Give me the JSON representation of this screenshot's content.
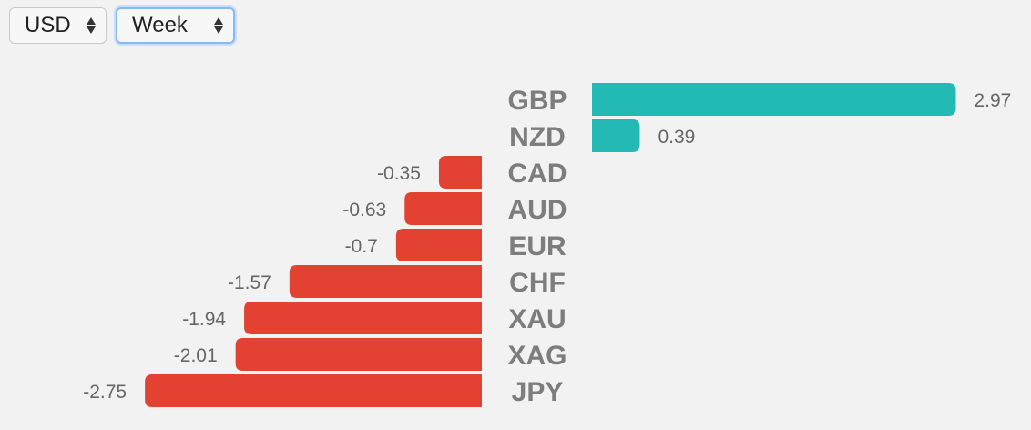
{
  "controls": {
    "currency_select": "USD",
    "period_select": "Week"
  },
  "colors": {
    "positive": "#23bab6",
    "negative": "#e34233"
  },
  "chart_data": {
    "type": "bar",
    "orientation": "horizontal",
    "categories": [
      "GBP",
      "NZD",
      "CAD",
      "AUD",
      "EUR",
      "CHF",
      "XAU",
      "XAG",
      "JPY"
    ],
    "values": [
      2.97,
      0.39,
      -0.35,
      -0.63,
      -0.7,
      -1.57,
      -1.94,
      -2.01,
      -2.75
    ],
    "value_labels": [
      "2.97",
      "0.39",
      "-0.35",
      "-0.63",
      "-0.7",
      "-1.57",
      "-1.94",
      "-2.01",
      "-2.75"
    ],
    "title": "",
    "xlabel": "",
    "ylabel": "",
    "grid": false,
    "legend": "none"
  }
}
